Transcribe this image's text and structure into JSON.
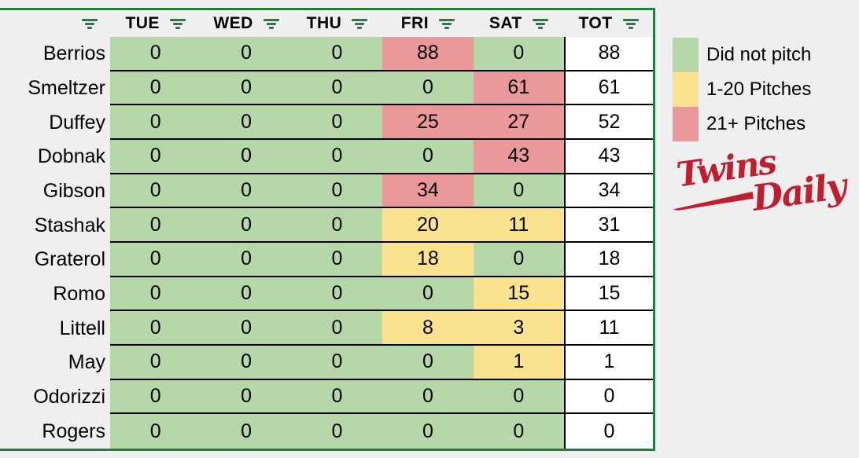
{
  "page": {
    "background": "#efefef"
  },
  "table": {
    "header": {
      "name_column_label": "",
      "columns": [
        "TUE",
        "WED",
        "THU",
        "FRI",
        "SAT",
        "TOT"
      ]
    },
    "rows": [
      {
        "name": "Berrios",
        "values": [
          0,
          0,
          0,
          88,
          0
        ],
        "total": 88
      },
      {
        "name": "Smeltzer",
        "values": [
          0,
          0,
          0,
          0,
          61
        ],
        "total": 61
      },
      {
        "name": "Duffey",
        "values": [
          0,
          0,
          0,
          25,
          27
        ],
        "total": 52
      },
      {
        "name": "Dobnak",
        "values": [
          0,
          0,
          0,
          0,
          43
        ],
        "total": 43
      },
      {
        "name": "Gibson",
        "values": [
          0,
          0,
          0,
          34,
          0
        ],
        "total": 34
      },
      {
        "name": "Stashak",
        "values": [
          0,
          0,
          0,
          20,
          11
        ],
        "total": 31
      },
      {
        "name": "Graterol",
        "values": [
          0,
          0,
          0,
          18,
          0
        ],
        "total": 18
      },
      {
        "name": "Romo",
        "values": [
          0,
          0,
          0,
          0,
          15
        ],
        "total": 15
      },
      {
        "name": "Littell",
        "values": [
          0,
          0,
          0,
          8,
          3
        ],
        "total": 11
      },
      {
        "name": "May",
        "values": [
          0,
          0,
          0,
          0,
          1
        ],
        "total": 1
      },
      {
        "name": "Odorizzi",
        "values": [
          0,
          0,
          0,
          0,
          0
        ],
        "total": 0
      },
      {
        "name": "Rogers",
        "values": [
          0,
          0,
          0,
          0,
          0
        ],
        "total": 0
      }
    ]
  },
  "legend": [
    {
      "label": "Did not pitch",
      "color": "#b6d7a8"
    },
    {
      "label": "1-20 Pitches",
      "color": "#fbe28e"
    },
    {
      "label": "21+ Pitches",
      "color": "#ea9899"
    }
  ],
  "colors": {
    "did_not_pitch": "#b6d7a8",
    "pitches_1_20": "#fbe28e",
    "pitches_21_plus": "#ea9899",
    "total_cell": "#ffffff",
    "table_border": "#237d3d",
    "grid_line": "#000000",
    "filter_icon": "#38714a",
    "logo_red": "#bf1e2e"
  },
  "logo": {
    "text_primary": "Twins",
    "text_secondary": "Daily"
  }
}
